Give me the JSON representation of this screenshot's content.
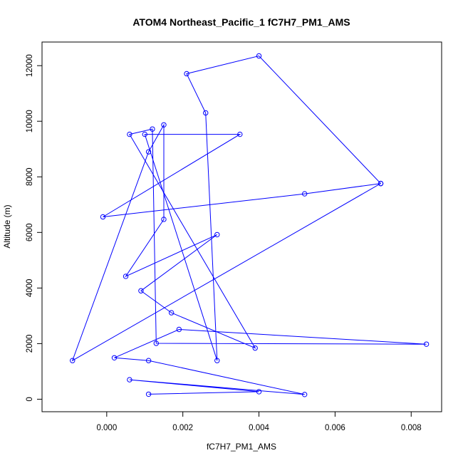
{
  "chart_data": {
    "type": "line",
    "title": "ATOM4 Northeast_Pacific_1 fC7H7_PM1_AMS",
    "xlabel": "fC7H7_PM1_AMS",
    "ylabel": "Altitude (m)",
    "xlim": [
      -0.0017,
      0.0088
    ],
    "ylim": [
      -450,
      12850
    ],
    "xticks": [
      0.0,
      0.002,
      0.004,
      0.006,
      0.008
    ],
    "xtick_labels": [
      "0.000",
      "0.002",
      "0.004",
      "0.006",
      "0.008"
    ],
    "yticks": [
      0,
      2000,
      4000,
      6000,
      8000,
      10000,
      12000
    ],
    "ytick_labels": [
      "0",
      "2000",
      "4000",
      "6000",
      "8000",
      "10000",
      "12000"
    ],
    "grid": false,
    "series_color": "#0000ff",
    "markers": "open-circle",
    "series": [
      {
        "x": [
          0.0011,
          0.004,
          0.0006,
          0.0052,
          0.0011,
          0.0002,
          0.0019,
          0.0084,
          0.0013,
          0.0012,
          0.0006,
          0.0039,
          0.0017,
          0.0009,
          0.0029,
          0.0005,
          0.0015,
          0.0015,
          0.0011,
          -0.0009,
          0.0072,
          0.0052,
          -0.0001,
          0.0035,
          0.001,
          0.0029,
          0.0026,
          0.0021,
          0.004,
          0.0072
        ],
        "y": [
          180,
          270,
          700,
          170,
          1390,
          1490,
          2510,
          1980,
          2010,
          9720,
          9530,
          1840,
          3110,
          3900,
          5920,
          4420,
          6470,
          9870,
          8900,
          1390,
          7760,
          7390,
          6560,
          9530,
          9530,
          1390,
          10300,
          11710,
          12350,
          7760
        ]
      }
    ]
  }
}
